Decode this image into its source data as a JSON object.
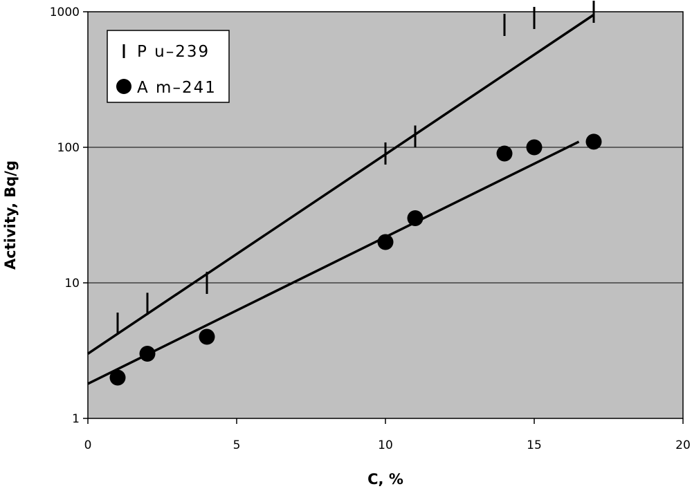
{
  "chart_data": {
    "type": "scatter",
    "xlabel": "C, %",
    "ylabel": "Activity, Bq/g",
    "xlim": [
      0,
      20
    ],
    "ylim": [
      1,
      1000
    ],
    "y_scale": "log",
    "x_ticks": [
      0,
      5,
      10,
      15,
      20
    ],
    "x_tick_labels": [
      "0",
      "5",
      "10",
      "15",
      "20"
    ],
    "y_ticks": [
      1,
      10,
      100,
      1000
    ],
    "y_tick_labels": [
      "1",
      "10",
      "100",
      "1000"
    ],
    "grid": "horizontal",
    "legend_position": "top-left",
    "background_color": "#c0c0c0",
    "series": [
      {
        "name": "Pu-239",
        "legend_label": "P u–239",
        "marker": "vertical-dash",
        "x": [
          1,
          2,
          4,
          10,
          11,
          14,
          15,
          17
        ],
        "y": [
          5,
          7,
          10,
          90,
          120,
          800,
          900,
          1000
        ],
        "trendline": {
          "x": [
            0,
            17
          ],
          "y": [
            3,
            950
          ]
        }
      },
      {
        "name": "Am-241",
        "legend_label": "A m–241",
        "marker": "filled-circle",
        "x": [
          1,
          2,
          4,
          10,
          11,
          14,
          15,
          17
        ],
        "y": [
          2,
          3,
          4,
          20,
          30,
          90,
          100,
          110
        ],
        "trendline": {
          "x": [
            0,
            16.5
          ],
          "y": [
            1.8,
            110
          ]
        }
      }
    ]
  }
}
